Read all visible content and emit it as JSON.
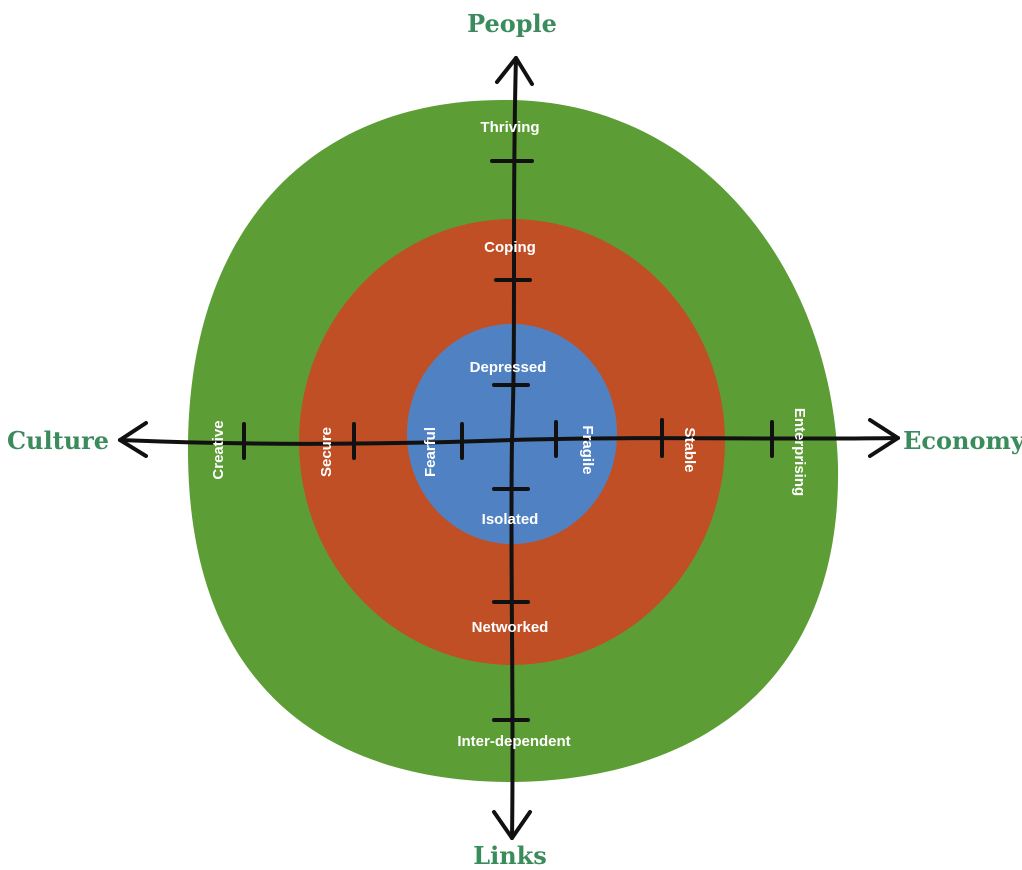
{
  "axes": {
    "top": "People",
    "bottom": "Links",
    "left": "Culture",
    "right": "Economy"
  },
  "rings": {
    "outer": {
      "color": "#5c9e35",
      "labels": {
        "top": "Thriving",
        "bottom": "Inter-dependent",
        "left": "Creative",
        "right": "Enterprising"
      }
    },
    "middle": {
      "color": "#c04f26",
      "labels": {
        "top": "Coping",
        "bottom": "Networked",
        "left": "Secure",
        "right": "Stable"
      }
    },
    "inner": {
      "color": "#5082c3",
      "labels": {
        "top": "Depressed",
        "bottom": "Isolated",
        "left": "Fearful",
        "right": "Fragile"
      }
    }
  }
}
